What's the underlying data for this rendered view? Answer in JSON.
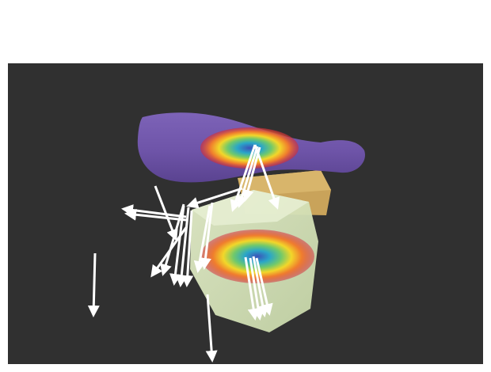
{
  "scene": {
    "background_color": "#303030",
    "objects": [
      {
        "name": "bottle",
        "color": "#6e54a8"
      },
      {
        "name": "box",
        "color": "#c9a35a"
      },
      {
        "name": "cube",
        "color": "#d8e6c0"
      }
    ],
    "heatmaps": [
      {
        "object": "bottle",
        "palette": [
          "#d22a3a",
          "#f07d2d",
          "#f2d72a",
          "#71c96b",
          "#2aa6c8",
          "#3b52b8"
        ]
      },
      {
        "object": "cube",
        "palette": [
          "#d22a3a",
          "#f07d2d",
          "#f2d72a",
          "#71c96b",
          "#2aa6c8",
          "#3b52b8"
        ]
      }
    ],
    "vector_color": "#ffffff"
  }
}
